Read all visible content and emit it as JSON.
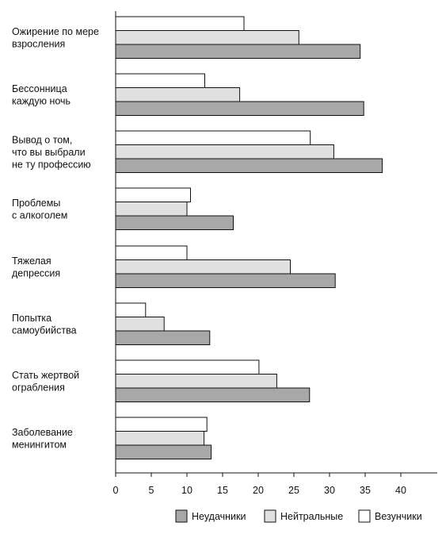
{
  "chart_data": {
    "type": "bar",
    "orientation": "horizontal",
    "categories": [
      [
        "Ожирение по мере",
        "взросления"
      ],
      [
        "Бессонница",
        "каждую ночь"
      ],
      [
        "Вывод о том,",
        "что вы выбрали",
        "не ту профессию"
      ],
      [
        "Проблемы",
        "с алкоголем"
      ],
      [
        "Тяжелая",
        "депрессия"
      ],
      [
        "Попытка",
        "самоубийства"
      ],
      [
        "Стать жертвой",
        "ограбления"
      ],
      [
        "Заболевание",
        "менингитом"
      ]
    ],
    "series": [
      {
        "name": "Везунчики",
        "color": "#ffffff",
        "values": [
          18.0,
          12.5,
          27.3,
          10.5,
          10.0,
          4.2,
          20.1,
          12.8
        ]
      },
      {
        "name": "Нейтральные",
        "color": "#e0e0e0",
        "values": [
          25.7,
          17.4,
          30.6,
          10.0,
          24.5,
          6.8,
          22.6,
          12.4
        ]
      },
      {
        "name": "Неудачники",
        "color": "#a8a8a8",
        "values": [
          34.3,
          34.8,
          37.4,
          16.5,
          30.8,
          13.2,
          27.2,
          13.4
        ]
      }
    ],
    "legend_order": [
      "Неудачники",
      "Нейтральные",
      "Везунчики"
    ],
    "xticks": [
      "0",
      "5",
      "10",
      "15",
      "20",
      "25",
      "30",
      "35",
      "40"
    ],
    "xlim": [
      0,
      45
    ],
    "grid": false,
    "legend_position": "bottom",
    "title": "",
    "xlabel": "",
    "ylabel": ""
  }
}
